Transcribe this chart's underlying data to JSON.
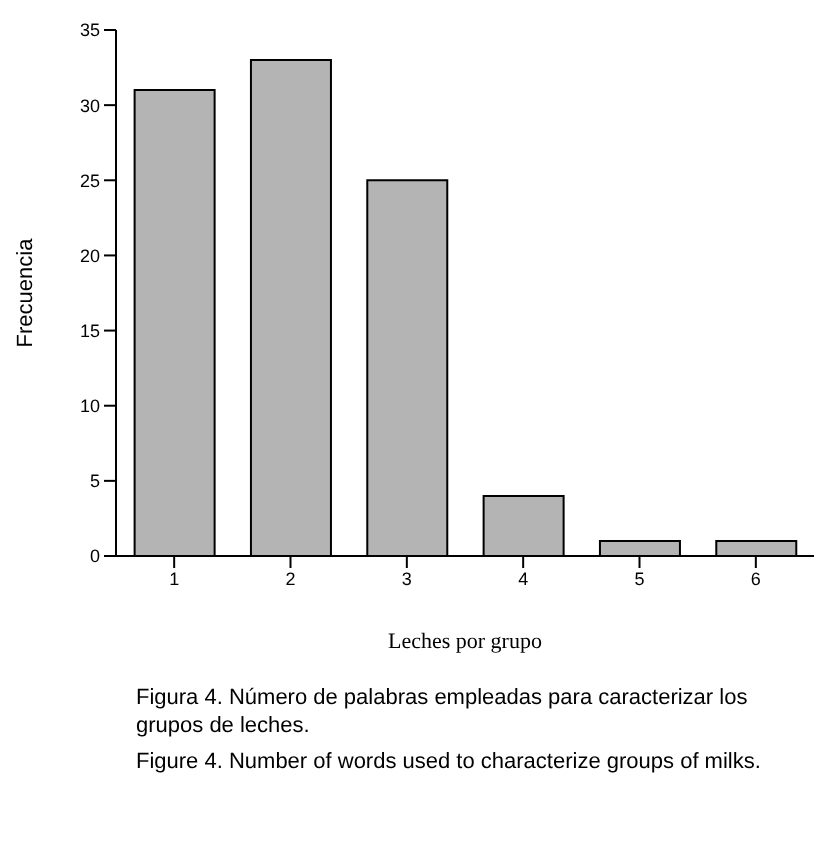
{
  "chart_data": {
    "type": "bar",
    "xlabel": "Leches por grupo",
    "ylabel": "Frecuencia",
    "categories": [
      "1",
      "2",
      "3",
      "4",
      "5",
      "6"
    ],
    "values": [
      31,
      33,
      25,
      4,
      1,
      1
    ],
    "color": "#b4b4b4",
    "ylim": [
      0,
      35
    ],
    "yticks": [
      0,
      5,
      10,
      15,
      20,
      25,
      30,
      35
    ],
    "grid": false,
    "legend": false,
    "annotations": [
      "Figura 4.   Número de palabras empleadas para caracterizar los grupos de leches.",
      "Figure 4.   Number of words used to characterize groups of milks."
    ]
  }
}
